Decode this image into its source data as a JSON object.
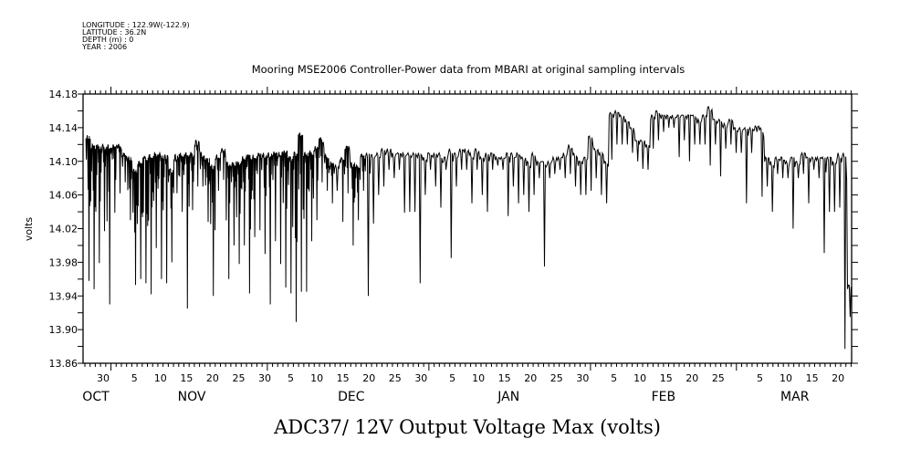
{
  "header": {
    "longitude": "LONGITUDE : 122.9W(-122.9)",
    "latitude": "LATITUDE : 36.2N",
    "depth": "DEPTH (m) : 0",
    "year": "YEAR : 2006"
  },
  "chart_data": {
    "type": "line",
    "title": "Mooring MSE2006 Controller-Power data from MBARI at original sampling intervals",
    "xlabel": "",
    "ylabel": "volts",
    "footer_label": "ADC37/ 12V Output Voltage Max (volts)",
    "x_units": "days since 25 Oct 00:00",
    "xlim": [
      1.65,
      149.1
    ],
    "ylim": [
      13.86,
      14.18
    ],
    "grid": false,
    "y_ticks": {
      "minor_step": 0.02,
      "labels": [
        "13.86",
        "13.90",
        "13.94",
        "13.98",
        "14.02",
        "14.06",
        "14.10",
        "14.14",
        "14.18"
      ]
    },
    "x_ticks": [
      {
        "label": "30",
        "day": 5.5
      },
      {
        "label": "5",
        "day": 11.5
      },
      {
        "label": "10",
        "day": 16.5
      },
      {
        "label": "15",
        "day": 21.5
      },
      {
        "label": "20",
        "day": 26.5
      },
      {
        "label": "25",
        "day": 31.5
      },
      {
        "label": "30",
        "day": 36.5
      },
      {
        "label": "5",
        "day": 41.5
      },
      {
        "label": "10",
        "day": 46.5
      },
      {
        "label": "15",
        "day": 51.5
      },
      {
        "label": "20",
        "day": 56.5
      },
      {
        "label": "25",
        "day": 61.5
      },
      {
        "label": "30",
        "day": 66.5
      },
      {
        "label": "5",
        "day": 72.5
      },
      {
        "label": "10",
        "day": 77.5
      },
      {
        "label": "15",
        "day": 82.5
      },
      {
        "label": "20",
        "day": 87.5
      },
      {
        "label": "25",
        "day": 92.5
      },
      {
        "label": "30",
        "day": 97.5
      },
      {
        "label": "5",
        "day": 103.5
      },
      {
        "label": "10",
        "day": 108.5
      },
      {
        "label": "15",
        "day": 113.5
      },
      {
        "label": "20",
        "day": 118.5
      },
      {
        "label": "25",
        "day": 123.5
      },
      {
        "label": "5",
        "day": 131.5
      },
      {
        "label": "10",
        "day": 136.5
      },
      {
        "label": "15",
        "day": 141.5
      },
      {
        "label": "20",
        "day": 146.5
      }
    ],
    "month_boundaries": [
      7,
      37,
      68,
      99,
      127
    ],
    "months": [
      {
        "label": "OCT",
        "day": 4.1
      },
      {
        "label": "NOV",
        "day": 22.5
      },
      {
        "label": "DEC",
        "day": 53.1
      },
      {
        "label": "JAN",
        "day": 83.3
      },
      {
        "label": "FEB",
        "day": 113.0
      },
      {
        "label": "MAR",
        "day": 138.2
      }
    ],
    "series": [
      {
        "name": "ADC37/ 12V Output Voltage Max",
        "x_start": 2.2,
        "x_step": 0.994,
        "daily_max": [
          14.131,
          14.12,
          14.12,
          14.12,
          14.12,
          14.12,
          14.12,
          14.11,
          14.105,
          14.091,
          14.1,
          14.106,
          14.108,
          14.11,
          14.11,
          14.108,
          14.091,
          14.108,
          14.11,
          14.11,
          14.111,
          14.125,
          14.111,
          14.104,
          14.096,
          14.108,
          14.115,
          14.099,
          14.099,
          14.1,
          14.106,
          14.108,
          14.108,
          14.11,
          14.11,
          14.11,
          14.111,
          14.111,
          14.113,
          14.106,
          14.111,
          14.134,
          14.111,
          14.113,
          14.118,
          14.128,
          14.108,
          14.099,
          14.096,
          14.104,
          14.118,
          14.099,
          14.096,
          14.108,
          14.11,
          14.108,
          14.11,
          14.115,
          14.115,
          14.11,
          14.11,
          14.11,
          14.11,
          14.11,
          14.11,
          14.105,
          14.11,
          14.11,
          14.11,
          14.105,
          14.115,
          14.11,
          14.115,
          14.115,
          14.11,
          14.115,
          14.105,
          14.11,
          14.11,
          14.105,
          14.105,
          14.11,
          14.11,
          14.11,
          14.105,
          14.1,
          14.11,
          14.1,
          14.1,
          14.1,
          14.105,
          14.105,
          14.11,
          14.12,
          14.11,
          14.1,
          14.105,
          14.13,
          14.115,
          14.11,
          14.1,
          14.158,
          14.16,
          14.155,
          14.15,
          14.14,
          14.125,
          14.125,
          14.12,
          14.155,
          14.16,
          14.155,
          14.155,
          14.155,
          14.155,
          14.155,
          14.155,
          14.155,
          14.15,
          14.155,
          14.165,
          14.15,
          14.15,
          14.145,
          14.15,
          14.14,
          14.14,
          14.14,
          14.14,
          14.142,
          14.14,
          14.105,
          14.1,
          14.105,
          14.105,
          14.1,
          14.105,
          14.1,
          14.11,
          14.105,
          14.105,
          14.105,
          14.105,
          14.105,
          14.1,
          14.11,
          14.11,
          13.953
        ],
        "daily_min": [
          13.958,
          13.948,
          13.979,
          14.017,
          13.93,
          14.039,
          14.062,
          14.075,
          14.03,
          13.953,
          13.96,
          13.955,
          13.942,
          13.997,
          13.96,
          13.955,
          13.98,
          14.062,
          14.04,
          13.925,
          14.042,
          14.07,
          14.07,
          14.028,
          13.94,
          14.065,
          14.078,
          13.96,
          14.0,
          13.978,
          14.0,
          13.943,
          14.01,
          14.018,
          13.99,
          13.93,
          14.005,
          13.978,
          13.95,
          13.943,
          13.909,
          13.945,
          13.945,
          14.005,
          14.03,
          14.075,
          14.065,
          14.05,
          14.065,
          14.028,
          14.062,
          14.0,
          14.03,
          14.065,
          13.94,
          14.026,
          14.06,
          14.07,
          14.09,
          14.08,
          14.09,
          14.039,
          14.04,
          14.04,
          13.955,
          14.06,
          14.09,
          14.07,
          14.045,
          14.09,
          13.985,
          14.07,
          14.09,
          14.09,
          14.05,
          14.09,
          14.06,
          14.04,
          14.09,
          14.095,
          14.09,
          14.035,
          14.07,
          14.05,
          14.06,
          14.04,
          14.06,
          14.08,
          13.975,
          14.08,
          14.085,
          14.09,
          14.08,
          14.085,
          14.07,
          14.06,
          14.06,
          14.065,
          14.08,
          14.06,
          14.05,
          14.102,
          14.12,
          14.12,
          14.12,
          14.11,
          14.1,
          14.091,
          14.09,
          14.115,
          14.125,
          14.135,
          14.14,
          14.14,
          14.105,
          14.125,
          14.1,
          14.12,
          14.12,
          14.12,
          14.095,
          14.12,
          14.082,
          14.115,
          14.12,
          14.11,
          14.11,
          14.05,
          14.11,
          14.135,
          14.058,
          14.07,
          14.04,
          14.085,
          14.08,
          14.08,
          14.02,
          14.08,
          14.085,
          14.05,
          14.09,
          14.08,
          13.991,
          14.04,
          14.04,
          14.045,
          13.877,
          13.915
        ]
      }
    ]
  }
}
